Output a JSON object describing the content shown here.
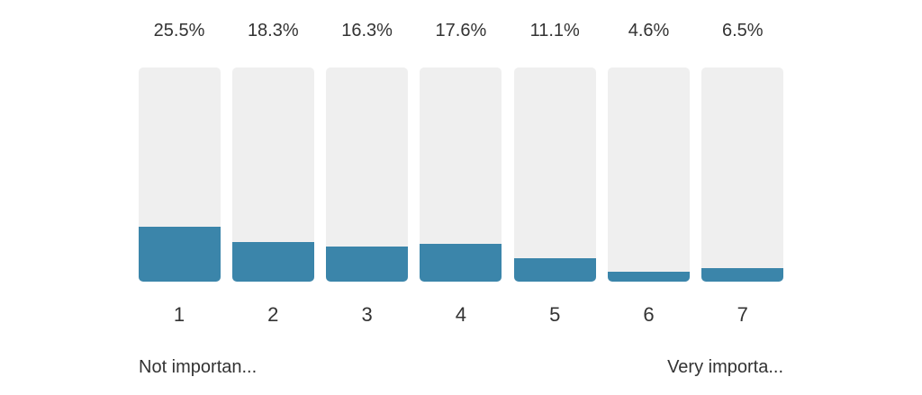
{
  "chart_data": {
    "type": "bar",
    "categories": [
      "1",
      "2",
      "3",
      "4",
      "5",
      "6",
      "7"
    ],
    "values": [
      25.5,
      18.3,
      16.3,
      17.6,
      11.1,
      4.6,
      6.5
    ],
    "value_labels": [
      "25.5%",
      "18.3%",
      "16.3%",
      "17.6%",
      "11.1%",
      "4.6%",
      "6.5%"
    ],
    "ylim": [
      0,
      100
    ],
    "unit": "%",
    "grid": false,
    "scale_labels": {
      "low": "Not importan...",
      "high": "Very importa..."
    },
    "colors": {
      "fill": "#3b85aa",
      "track": "#efefef"
    }
  }
}
